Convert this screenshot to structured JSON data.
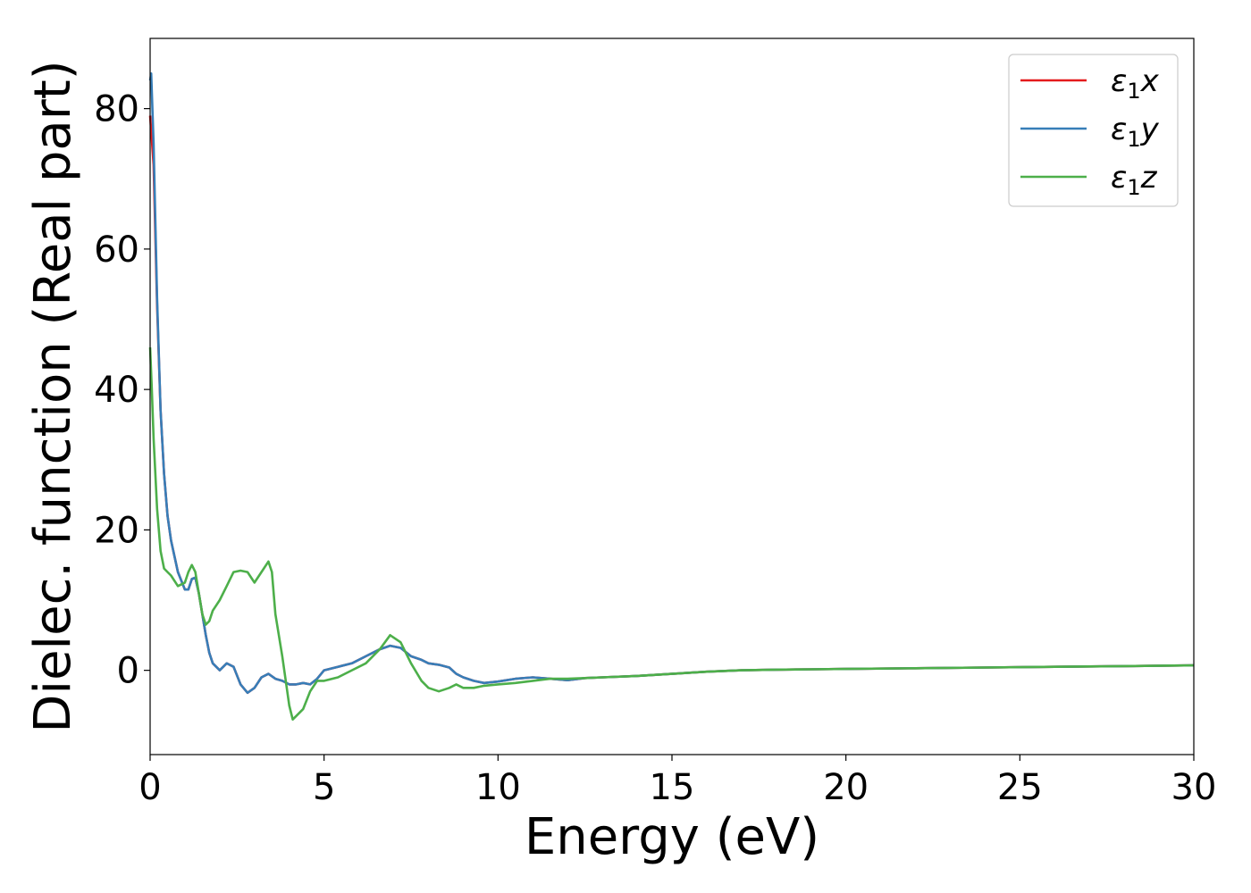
{
  "chart_data": {
    "type": "line",
    "title": "",
    "xlabel": "Energy (eV)",
    "ylabel": "Dielec. function (Real part)",
    "xlim": [
      0,
      30
    ],
    "ylim": [
      -12,
      90
    ],
    "xticks": [
      0,
      5,
      10,
      15,
      20,
      25,
      30
    ],
    "yticks": [
      0,
      20,
      40,
      60,
      80
    ],
    "grid": false,
    "legend_position": "top-right",
    "series": [
      {
        "name": "ε1x",
        "legend": {
          "base": "ε",
          "sub": "1",
          "axis": "x"
        },
        "color": "#e41a1c",
        "x": [
          0.0,
          0.1,
          0.2,
          0.3,
          0.4,
          0.5,
          0.6,
          0.8,
          1.0,
          1.1,
          1.2,
          1.3,
          1.4,
          1.5,
          1.6,
          1.7,
          1.8,
          2.0,
          2.2,
          2.4,
          2.6,
          2.8,
          3.0,
          3.2,
          3.4,
          3.6,
          3.8,
          4.0,
          4.2,
          4.4,
          4.6,
          4.8,
          5.0,
          5.4,
          5.8,
          6.2,
          6.6,
          6.9,
          7.2,
          7.5,
          7.8,
          8.0,
          8.3,
          8.6,
          8.8,
          9.0,
          9.3,
          9.6,
          10.0,
          10.5,
          11.0,
          11.5,
          12.0,
          12.5,
          13.0,
          14.0,
          15.0,
          16.0,
          17.0,
          18.0,
          19.0,
          20.0,
          22.0,
          24.0,
          26.0,
          28.0,
          30.0
        ],
        "values": [
          79,
          72,
          52,
          37,
          28,
          22,
          18.5,
          14,
          11.5,
          11.5,
          13,
          13.2,
          11,
          8,
          5,
          2.5,
          1,
          0,
          1,
          0.5,
          -2,
          -3.2,
          -2.5,
          -1,
          -0.5,
          -1.2,
          -1.5,
          -2,
          -2,
          -1.8,
          -2,
          -1.2,
          0,
          0.5,
          1,
          2,
          3,
          3.5,
          3.2,
          2,
          1.5,
          1,
          0.8,
          0.4,
          -0.5,
          -1,
          -1.5,
          -1.8,
          -1.6,
          -1.2,
          -1.0,
          -1.2,
          -1.4,
          -1.1,
          -1.0,
          -0.8,
          -0.5,
          -0.2,
          0,
          0.1,
          0.15,
          0.2,
          0.3,
          0.4,
          0.5,
          0.6,
          0.7
        ]
      },
      {
        "name": "ε1y",
        "legend": {
          "base": "ε",
          "sub": "1",
          "axis": "y"
        },
        "color": "#377eb8",
        "x": [
          0.0,
          0.03,
          0.1,
          0.2,
          0.3,
          0.4,
          0.5,
          0.6,
          0.8,
          1.0,
          1.1,
          1.2,
          1.3,
          1.4,
          1.5,
          1.6,
          1.7,
          1.8,
          2.0,
          2.2,
          2.4,
          2.6,
          2.8,
          3.0,
          3.2,
          3.4,
          3.6,
          3.8,
          4.0,
          4.2,
          4.4,
          4.6,
          4.8,
          5.0,
          5.4,
          5.8,
          6.2,
          6.6,
          6.9,
          7.2,
          7.5,
          7.8,
          8.0,
          8.3,
          8.6,
          8.8,
          9.0,
          9.3,
          9.6,
          10.0,
          10.5,
          11.0,
          11.5,
          12.0,
          12.5,
          13.0,
          14.0,
          15.0,
          16.0,
          17.0,
          18.0,
          19.0,
          20.0,
          22.0,
          24.0,
          26.0,
          28.0,
          30.0
        ],
        "values": [
          84,
          85,
          75,
          53,
          37,
          28,
          22,
          18.5,
          14,
          11.5,
          11.5,
          13,
          13.2,
          11,
          8,
          5,
          2.5,
          1,
          0,
          1,
          0.5,
          -2,
          -3.2,
          -2.5,
          -1,
          -0.5,
          -1.2,
          -1.5,
          -2,
          -2,
          -1.8,
          -2,
          -1.2,
          0,
          0.5,
          1,
          2,
          3,
          3.5,
          3.2,
          2,
          1.5,
          1,
          0.8,
          0.4,
          -0.5,
          -1,
          -1.5,
          -1.8,
          -1.6,
          -1.2,
          -1.0,
          -1.2,
          -1.4,
          -1.1,
          -1.0,
          -0.8,
          -0.5,
          -0.2,
          0,
          0.1,
          0.15,
          0.2,
          0.3,
          0.4,
          0.5,
          0.6,
          0.7
        ]
      },
      {
        "name": "ε1z",
        "legend": {
          "base": "ε",
          "sub": "1",
          "axis": "z"
        },
        "color": "#4daf4a",
        "x": [
          0.0,
          0.05,
          0.1,
          0.2,
          0.3,
          0.4,
          0.5,
          0.6,
          0.8,
          1.0,
          1.1,
          1.2,
          1.3,
          1.4,
          1.5,
          1.6,
          1.7,
          1.8,
          2.0,
          2.2,
          2.4,
          2.6,
          2.8,
          3.0,
          3.2,
          3.4,
          3.5,
          3.6,
          3.8,
          4.0,
          4.1,
          4.2,
          4.4,
          4.6,
          4.8,
          5.0,
          5.4,
          5.8,
          6.2,
          6.6,
          6.9,
          7.2,
          7.5,
          7.8,
          8.0,
          8.3,
          8.6,
          8.8,
          9.0,
          9.3,
          9.6,
          10.0,
          10.5,
          11.0,
          11.5,
          12.0,
          12.5,
          13.0,
          14.0,
          15.0,
          16.0,
          17.0,
          18.0,
          19.0,
          20.0,
          22.0,
          24.0,
          26.0,
          28.0,
          30.0
        ],
        "values": [
          46,
          40,
          33,
          23,
          17,
          14.5,
          14,
          13.5,
          12,
          12.5,
          14,
          15,
          14,
          11,
          8,
          6.5,
          7,
          8.5,
          10,
          12,
          14,
          14.2,
          14,
          12.5,
          14,
          15.5,
          14,
          8,
          2,
          -5,
          -7,
          -6.5,
          -5.5,
          -3,
          -1.5,
          -1.5,
          -1,
          0,
          1,
          3,
          5,
          4,
          1,
          -1.5,
          -2.5,
          -3,
          -2.5,
          -2,
          -2.5,
          -2.5,
          -2.2,
          -2,
          -1.8,
          -1.5,
          -1.2,
          -1.2,
          -1.1,
          -1.0,
          -0.8,
          -0.5,
          -0.2,
          0,
          0.1,
          0.15,
          0.2,
          0.3,
          0.4,
          0.5,
          0.6,
          0.7
        ]
      }
    ]
  }
}
